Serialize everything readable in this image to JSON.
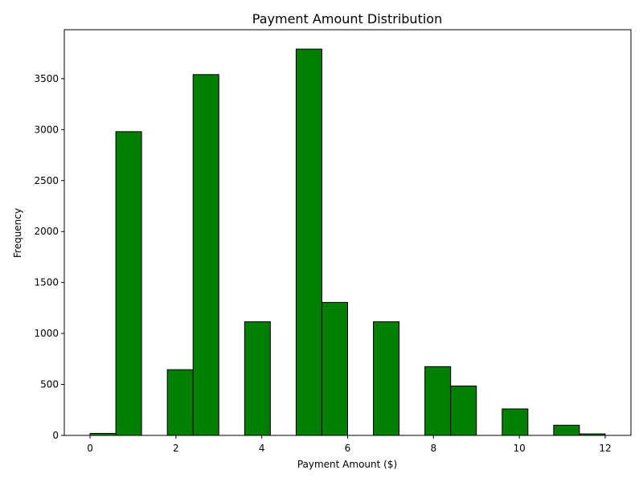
{
  "chart_data": {
    "type": "bar",
    "title": "Payment Amount Distribution",
    "xlabel": "Payment Amount ($)",
    "ylabel": "Frequency",
    "xlim": [
      -0.6,
      12.6
    ],
    "ylim": [
      0,
      3980
    ],
    "xticks": [
      0,
      2,
      4,
      6,
      8,
      10,
      12
    ],
    "yticks": [
      0,
      500,
      1000,
      1500,
      2000,
      2500,
      3000,
      3500
    ],
    "grid": false,
    "bar_color": "#008000",
    "edge_color": "#000000",
    "bins": [
      {
        "x0": 0.0,
        "x1": 0.6,
        "value": 20
      },
      {
        "x0": 0.6,
        "x1": 1.2,
        "value": 2980
      },
      {
        "x0": 1.2,
        "x1": 1.8,
        "value": 0
      },
      {
        "x0": 1.8,
        "x1": 2.4,
        "value": 645
      },
      {
        "x0": 2.4,
        "x1": 3.0,
        "value": 3540
      },
      {
        "x0": 3.0,
        "x1": 3.6,
        "value": 0
      },
      {
        "x0": 3.6,
        "x1": 4.2,
        "value": 1115
      },
      {
        "x0": 4.2,
        "x1": 4.8,
        "value": 0
      },
      {
        "x0": 4.8,
        "x1": 5.4,
        "value": 3790
      },
      {
        "x0": 5.4,
        "x1": 6.0,
        "value": 1305
      },
      {
        "x0": 6.0,
        "x1": 6.6,
        "value": 0
      },
      {
        "x0": 6.6,
        "x1": 7.2,
        "value": 1115
      },
      {
        "x0": 7.2,
        "x1": 7.8,
        "value": 0
      },
      {
        "x0": 7.8,
        "x1": 8.4,
        "value": 675
      },
      {
        "x0": 8.4,
        "x1": 9.0,
        "value": 485
      },
      {
        "x0": 9.0,
        "x1": 9.6,
        "value": 0
      },
      {
        "x0": 9.6,
        "x1": 10.2,
        "value": 260
      },
      {
        "x0": 10.2,
        "x1": 10.8,
        "value": 0
      },
      {
        "x0": 10.8,
        "x1": 11.4,
        "value": 100
      },
      {
        "x0": 11.4,
        "x1": 12.0,
        "value": 15
      }
    ]
  }
}
